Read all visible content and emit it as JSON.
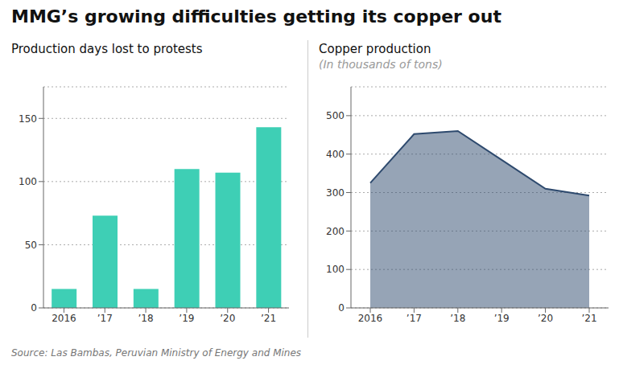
{
  "title": "MMG’s growing difficulties getting its copper out",
  "source": "Source: Las Bambas, Peruvian Ministry of Energy and Mines",
  "chart_data": [
    {
      "type": "bar",
      "subtitle": "Production days lost to protests",
      "categories": [
        "2016",
        "’17",
        "’18",
        "’19",
        "’20",
        "’21"
      ],
      "values": [
        15,
        73,
        15,
        110,
        107,
        143
      ],
      "color": "#3ecfb5",
      "ylim": [
        0,
        175
      ],
      "yticks": [
        0,
        50,
        100,
        150
      ],
      "grid": true
    },
    {
      "type": "area",
      "subtitle": "Copper production",
      "annotation": "(In thousands of tons)",
      "categories": [
        "2016",
        "’17",
        "’18",
        "’19",
        "’20",
        "’21"
      ],
      "values": [
        325,
        452,
        460,
        385,
        310,
        292
      ],
      "color": "#2e4a6e",
      "ylim": [
        0,
        575
      ],
      "yticks": [
        0,
        100,
        200,
        300,
        400,
        500
      ],
      "grid": true
    }
  ]
}
